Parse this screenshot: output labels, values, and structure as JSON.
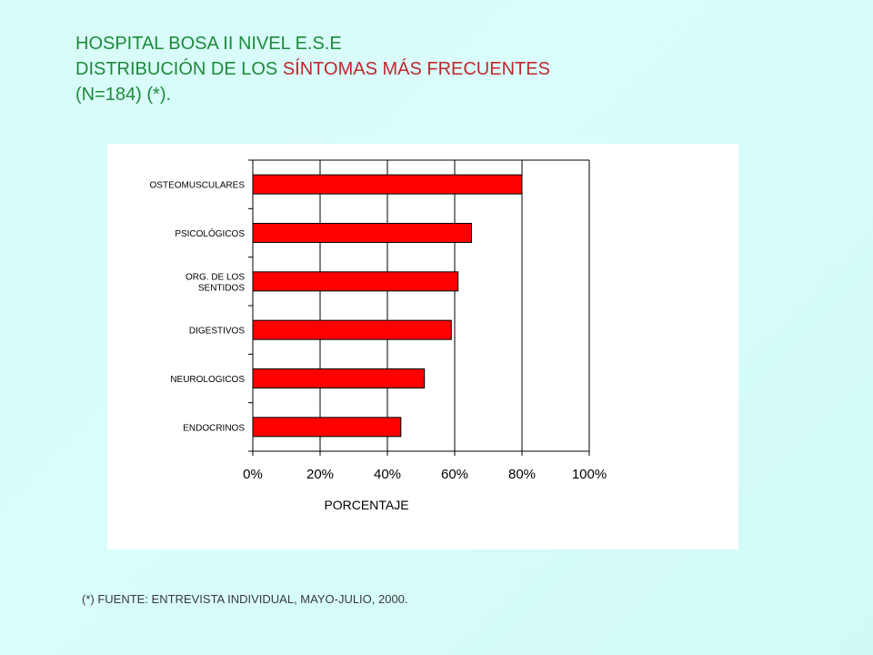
{
  "title": {
    "line1": "HOSPITAL BOSA II NIVEL E.S.E",
    "line2_part1": "DISTRIBUCIÓN DE LOS ",
    "line2_part2": "SÍNTOMAS MÁS FRECUENTES",
    "line3": "(N=184) (*)."
  },
  "footnote": "(*) FUENTE: ENTREVISTA INDIVIDUAL, MAYO-JULIO, 2000.",
  "colors": {
    "bar": "#ff0000",
    "title_green": "#1e8a3c",
    "title_red": "#c0272d"
  },
  "chart_data": {
    "type": "bar",
    "orientation": "horizontal",
    "categories": [
      [
        "OSTEOMUSCULARES"
      ],
      [
        "PSICOLÓGICOS"
      ],
      [
        "ORG. DE LOS",
        "SENTIDOS"
      ],
      [
        "DIGESTIVOS"
      ],
      [
        "NEUROLOGICOS"
      ],
      [
        "ENDOCRINOS"
      ]
    ],
    "values": [
      80,
      65,
      61,
      59,
      51,
      44
    ],
    "xlabel": "PORCENTAJE",
    "ylabel": "",
    "xlim": [
      0,
      100
    ],
    "xticks": [
      "0%",
      "20%",
      "40%",
      "60%",
      "80%",
      "100%"
    ],
    "grid": "vertical",
    "legend": "none"
  }
}
